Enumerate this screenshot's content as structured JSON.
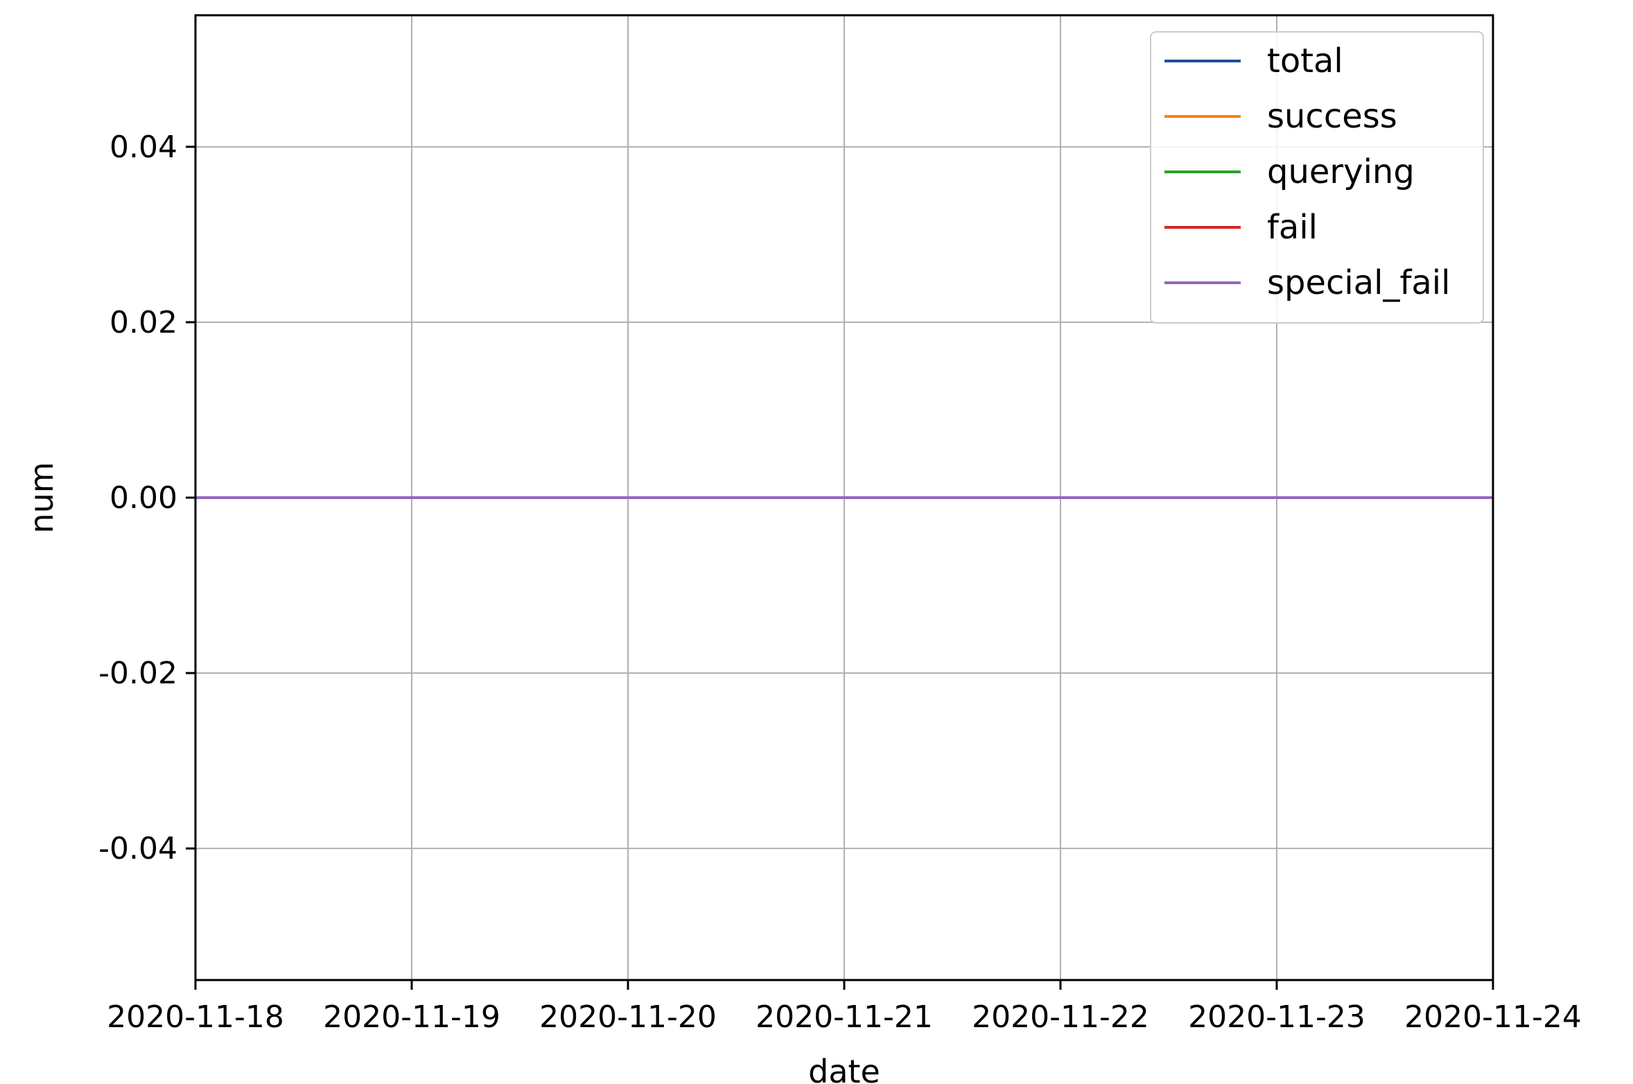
{
  "chart_data": {
    "type": "line",
    "title": "",
    "xlabel": "date",
    "ylabel": "num",
    "x": [
      "2020-11-18",
      "2020-11-19",
      "2020-11-20",
      "2020-11-21",
      "2020-11-22",
      "2020-11-23",
      "2020-11-24"
    ],
    "xlim": [
      "2020-11-18",
      "2020-11-24"
    ],
    "ylim": [
      -0.055,
      0.055
    ],
    "yticks": [
      "0.04",
      "0.02",
      "0.00",
      "-0.02",
      "-0.04"
    ],
    "ytick_values": [
      0.04,
      0.02,
      0.0,
      -0.02,
      -0.04
    ],
    "grid": true,
    "legend_position": "top-right",
    "series": [
      {
        "name": "total",
        "color": "#1f4e9c",
        "values": [
          0,
          0,
          0,
          0,
          0,
          0,
          0
        ]
      },
      {
        "name": "success",
        "color": "#ff7f0e",
        "values": [
          0,
          0,
          0,
          0,
          0,
          0,
          0
        ]
      },
      {
        "name": "querying",
        "color": "#2ca02c",
        "values": [
          0,
          0,
          0,
          0,
          0,
          0,
          0
        ]
      },
      {
        "name": "fail",
        "color": "#d62728",
        "values": [
          0,
          0,
          0,
          0,
          0,
          0,
          0
        ]
      },
      {
        "name": "special_fail",
        "color": "#9467bd",
        "values": [
          0,
          0,
          0,
          0,
          0,
          0,
          0
        ]
      }
    ]
  }
}
